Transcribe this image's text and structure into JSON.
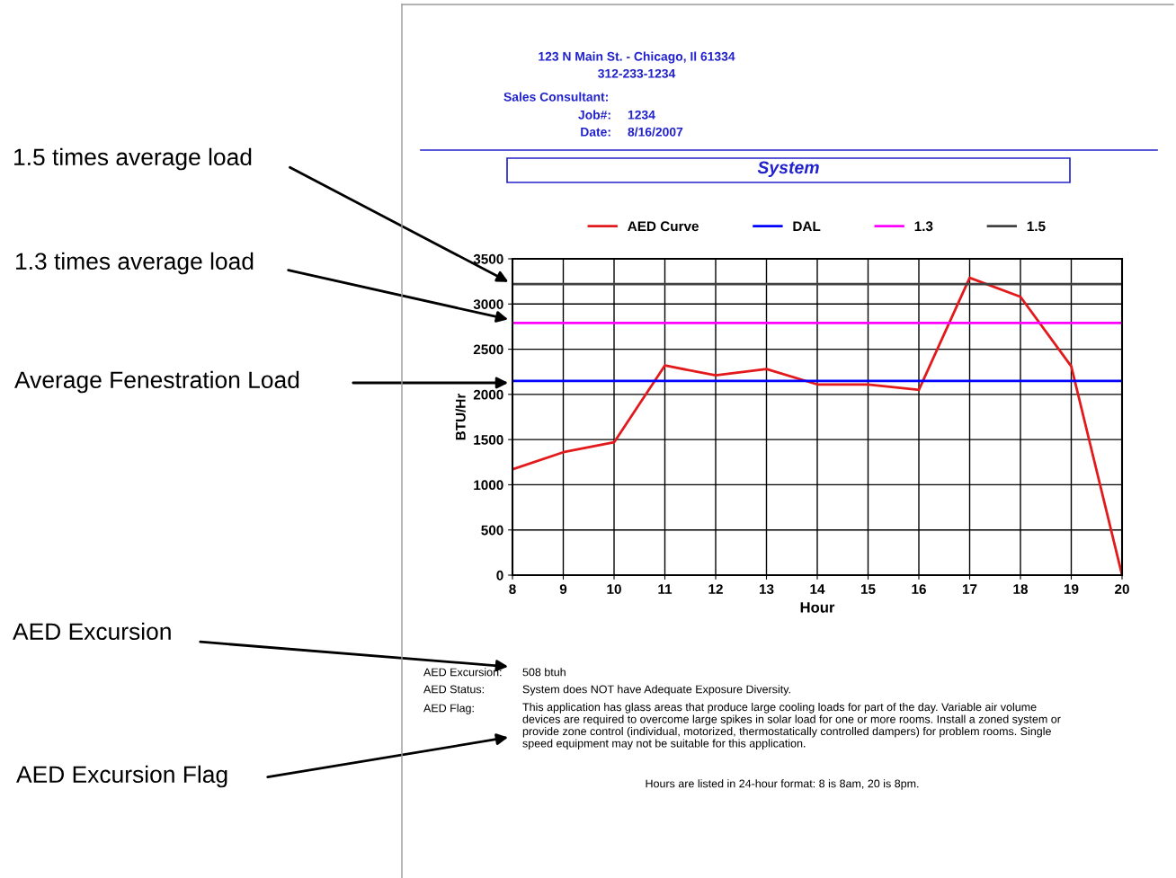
{
  "chart_data": {
    "type": "line",
    "title": "System",
    "xlabel": "Hour",
    "ylabel": "BTU/Hr",
    "x": [
      8,
      9,
      10,
      11,
      12,
      13,
      14,
      15,
      16,
      17,
      18,
      19,
      20
    ],
    "series": [
      {
        "name": "AED Curve",
        "color": "#e31a1c",
        "values": [
          1170,
          1360,
          1470,
          2320,
          2210,
          2280,
          2110,
          2110,
          2050,
          3290,
          3080,
          2310,
          0
        ]
      },
      {
        "name": "DAL",
        "color": "#0000ff",
        "values": [
          2150,
          2150,
          2150,
          2150,
          2150,
          2150,
          2150,
          2150,
          2150,
          2150,
          2150,
          2150,
          2150
        ]
      },
      {
        "name": "1.3",
        "color": "#ff00ff",
        "values": [
          2790,
          2790,
          2790,
          2790,
          2790,
          2790,
          2790,
          2790,
          2790,
          2790,
          2790,
          2790,
          2790
        ]
      },
      {
        "name": "1.5",
        "color": "#404040",
        "values": [
          3220,
          3220,
          3220,
          3220,
          3220,
          3220,
          3220,
          3220,
          3220,
          3220,
          3220,
          3220,
          3220
        ]
      }
    ],
    "xlim": [
      8,
      20
    ],
    "xticks": [
      8,
      9,
      10,
      11,
      12,
      13,
      14,
      15,
      16,
      17,
      18,
      19,
      20
    ],
    "ylim": [
      0,
      3500
    ],
    "yticks": [
      0,
      500,
      1000,
      1500,
      2000,
      2500,
      3000,
      3500
    ],
    "grid": true,
    "legend": "top",
    "marker": "none",
    "line_style": "solid",
    "annotations": [
      "123 N Main St. - Chicago, Il 61334",
      "312-233-1234",
      "Sales Consultant:",
      "Job#:",
      "1234",
      "Date:",
      "8/16/2007",
      "AED Excursion:",
      "508 btuh",
      "AED Status:",
      "System does NOT have Adequate Exposure Diversity.",
      "AED Flag:",
      "This application has glass areas that produce large cooling loads for part of the day. Variable air volume devices are required to overcome large spikes in solar load for one or more rooms. Install a zoned system or provide zone control (individual, motorized, thermostatically controlled dampers) for problem rooms. Single speed equipment may not be suitable for this application.",
      "Hours are listed in 24-hour format: 8 is 8am, 20 is 8pm.",
      "1.5 times average load",
      "1.3 times average load",
      "Average Fenestration Load",
      "AED Excursion",
      "AED Excursion Flag"
    ]
  }
}
